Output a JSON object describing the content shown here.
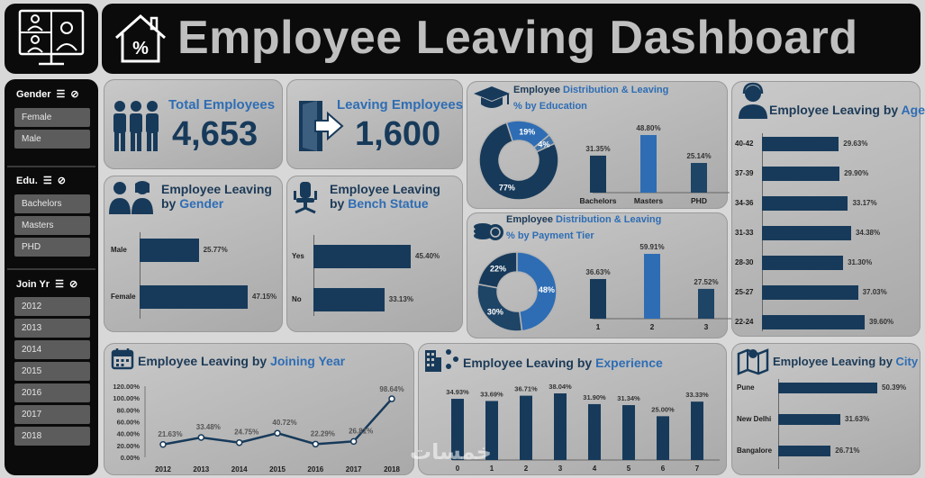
{
  "header": {
    "title": "Employee Leaving Dashboard"
  },
  "slicers": {
    "gender": {
      "title": "Gender",
      "items": [
        "Female",
        "Male"
      ]
    },
    "education": {
      "title": "Edu.",
      "items": [
        "Bachelors",
        "Masters",
        "PHD"
      ]
    },
    "join_year": {
      "title": "Join Yr",
      "items": [
        "2012",
        "2013",
        "2014",
        "2015",
        "2016",
        "2017",
        "2018"
      ]
    }
  },
  "kpis": {
    "total": {
      "label": "Total Employees",
      "value": "4,653"
    },
    "leaving": {
      "label": "Leaving Employees",
      "value": "1,600"
    }
  },
  "cards": {
    "gender": {
      "t1": "Employee Leaving",
      "t2": "by ",
      "t2b": "Gender"
    },
    "bench": {
      "t1": "Employee Leaving",
      "t2": "by ",
      "t2b": "Bench Statue"
    },
    "education": {
      "t1": "Employee ",
      "t1b": "Distribution & Leaving",
      "t2": "% by Education"
    },
    "payment": {
      "t1": "Employee ",
      "t1b": "Distribution & Leaving",
      "t2": "% by Payment Tier"
    },
    "age": {
      "t1": "Employee Leaving by ",
      "t1b": "Age"
    },
    "joining": {
      "t1": "Employee Leaving by ",
      "t1b": "Joining Year"
    },
    "experience": {
      "t1": "Employee Leaving by ",
      "t1b": "Experience"
    },
    "city": {
      "t1": "Employee Leaving by ",
      "t1b": "City"
    }
  },
  "watermark": "خمسات",
  "colors": {
    "navy": "#173a5a",
    "blue": "#2e6db4",
    "dark": "#0b0b0b"
  },
  "chart_data": [
    {
      "id": "gender",
      "type": "bar",
      "orientation": "horizontal",
      "categories": [
        "Male",
        "Female"
      ],
      "values": [
        25.77,
        47.15
      ],
      "labels": [
        "25.77%",
        "47.15%"
      ]
    },
    {
      "id": "bench",
      "type": "bar",
      "orientation": "horizontal",
      "categories": [
        "Yes",
        "No"
      ],
      "values": [
        45.4,
        33.13
      ],
      "labels": [
        "45.40%",
        "33.13%"
      ]
    },
    {
      "id": "education_donut",
      "type": "pie",
      "categories": [
        "Bachelors",
        "Masters",
        "PHD"
      ],
      "values": [
        77,
        19,
        4
      ],
      "labels": [
        "77%",
        "19%",
        "4%"
      ]
    },
    {
      "id": "education_bar",
      "type": "bar",
      "categories": [
        "Bachelors",
        "Masters",
        "PHD"
      ],
      "values": [
        31.35,
        48.8,
        25.14
      ],
      "labels": [
        "31.35%",
        "48.80%",
        "25.14%"
      ]
    },
    {
      "id": "payment_donut",
      "type": "pie",
      "categories": [
        "1",
        "2",
        "3"
      ],
      "values": [
        22,
        48,
        30
      ],
      "labels": [
        "22%",
        "48%",
        "30%"
      ]
    },
    {
      "id": "payment_bar",
      "type": "bar",
      "categories": [
        "1",
        "2",
        "3"
      ],
      "values": [
        36.63,
        59.91,
        27.52
      ],
      "labels": [
        "36.63%",
        "59.91%",
        "27.52%"
      ]
    },
    {
      "id": "age",
      "type": "bar",
      "orientation": "horizontal",
      "categories": [
        "40-42",
        "37-39",
        "34-36",
        "31-33",
        "28-30",
        "25-27",
        "22-24"
      ],
      "values": [
        29.63,
        29.9,
        33.17,
        34.38,
        31.3,
        37.03,
        39.6
      ],
      "labels": [
        "29.63%",
        "29.90%",
        "33.17%",
        "34.38%",
        "31.30%",
        "37.03%",
        "39.60%"
      ]
    },
    {
      "id": "joining_year",
      "type": "line",
      "x": [
        "2012",
        "2013",
        "2014",
        "2015",
        "2016",
        "2017",
        "2018"
      ],
      "values": [
        21.63,
        33.48,
        24.75,
        40.72,
        22.29,
        26.81,
        98.64
      ],
      "labels": [
        "21.63%",
        "33.48%",
        "24.75%",
        "40.72%",
        "22.29%",
        "26.81%",
        "98.64%"
      ],
      "yticks": [
        "0.00%",
        "20.00%",
        "40.00%",
        "60.00%",
        "80.00%",
        "100.00%",
        "120.00%"
      ],
      "ylim": [
        0,
        120
      ]
    },
    {
      "id": "experience",
      "type": "bar",
      "categories": [
        "0",
        "1",
        "2",
        "3",
        "4",
        "5",
        "6",
        "7"
      ],
      "values": [
        34.93,
        33.69,
        36.71,
        38.04,
        31.9,
        31.34,
        25.0,
        33.33
      ],
      "labels": [
        "34.93%",
        "33.69%",
        "36.71%",
        "38.04%",
        "31.90%",
        "31.34%",
        "25.00%",
        "33.33%"
      ]
    },
    {
      "id": "city",
      "type": "bar",
      "orientation": "horizontal",
      "categories": [
        "Pune",
        "New Delhi",
        "Bangalore"
      ],
      "values": [
        50.39,
        31.63,
        26.71
      ],
      "labels": [
        "50.39%",
        "31.63%",
        "26.71%"
      ]
    }
  ]
}
